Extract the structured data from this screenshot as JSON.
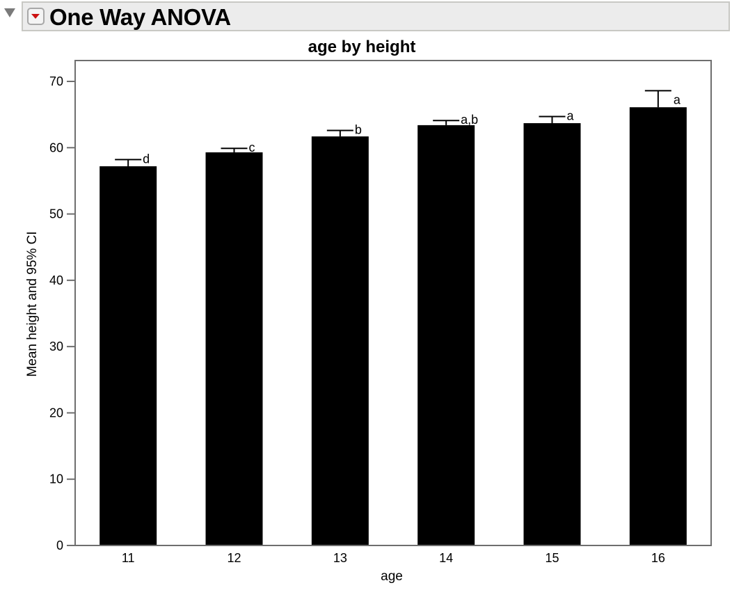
{
  "report": {
    "title": "One Way ANOVA",
    "disclosure_icon": "triangle-down",
    "menu_icon": "red-triangle-menu"
  },
  "chart_data": {
    "type": "bar",
    "title": "age by height",
    "xlabel": "age",
    "ylabel": "Mean height and 95% CI",
    "categories": [
      "11",
      "12",
      "13",
      "14",
      "15",
      "16"
    ],
    "values": [
      57.2,
      59.3,
      61.7,
      63.4,
      63.7,
      66.1
    ],
    "ci_upper": [
      58.2,
      59.9,
      62.6,
      64.1,
      64.7,
      68.6
    ],
    "group_letters": [
      "d",
      "c",
      "b",
      "a,b",
      "a",
      "a"
    ],
    "ylim": [
      0,
      73
    ],
    "yticks": [
      0,
      10,
      20,
      30,
      40,
      50,
      60,
      70
    ],
    "grid": false,
    "legend": null,
    "bar_color": "#000000",
    "frame_color": "#6e6e6e"
  }
}
